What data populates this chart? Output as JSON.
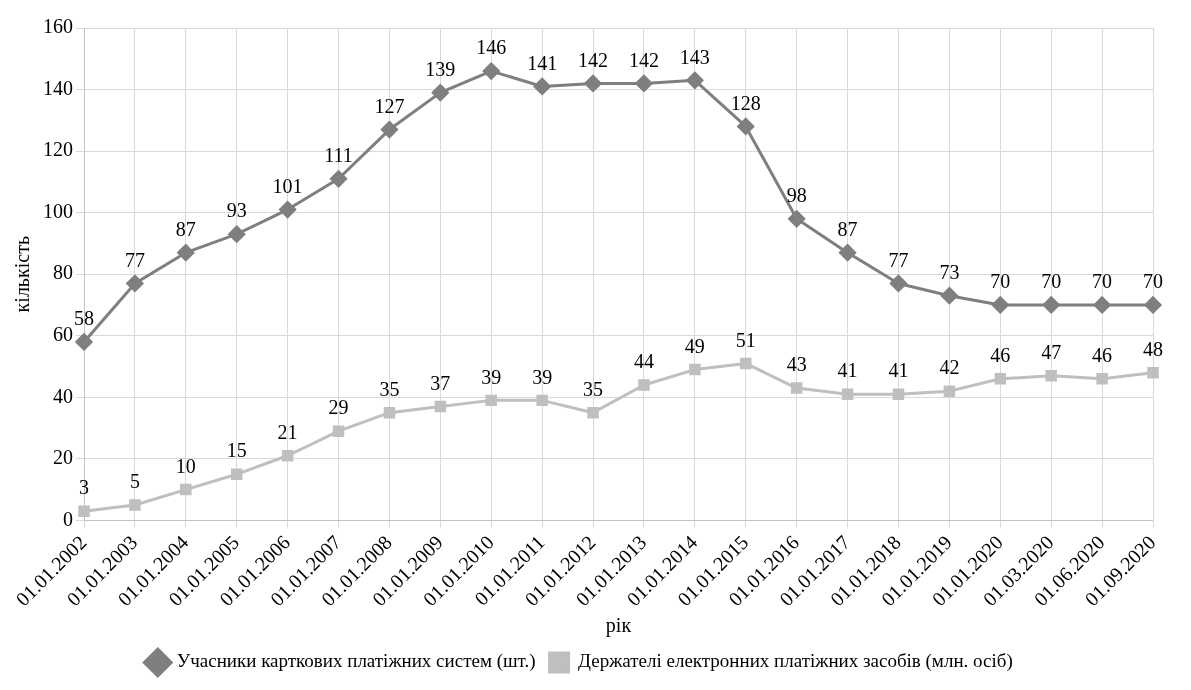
{
  "chart_data": {
    "type": "line",
    "xlabel": "рік",
    "ylabel": "кількість",
    "categories": [
      "01.01.2002",
      "01.01.2003",
      "01.01.2004",
      "01.01.2005",
      "01.01.2006",
      "01.01.2007",
      "01.01.2008",
      "01.01.2009",
      "01.01.2010",
      "01.01.2011",
      "01.01.2012",
      "01.01.2013",
      "01.01.2014",
      "01.01.2015",
      "01.01.2016",
      "01.01.2017",
      "01.01.2018",
      "01.01.2019",
      "01.01.2020",
      "01.03.2020",
      "01.06.2020",
      "01.09.2020"
    ],
    "series": [
      {
        "name": "Учасники карткових платіжних систем (шт.)",
        "color": "#7f7f7f",
        "marker": "diamond",
        "values": [
          58,
          77,
          87,
          93,
          101,
          111,
          127,
          139,
          146,
          141,
          142,
          142,
          143,
          128,
          98,
          87,
          77,
          73,
          70,
          70,
          70,
          70
        ]
      },
      {
        "name": "Держателі електронних платіжних засобів (млн. осіб)",
        "color": "#bfbfbf",
        "marker": "square",
        "values": [
          3,
          5,
          10,
          15,
          21,
          29,
          35,
          37,
          39,
          39,
          35,
          44,
          49,
          51,
          43,
          41,
          41,
          42,
          46,
          47,
          46,
          48
        ]
      }
    ],
    "ylim": [
      0,
      160
    ],
    "yticks": [
      0,
      20,
      40,
      60,
      80,
      100,
      120,
      140,
      160
    ],
    "grid": true,
    "legend": "bottom",
    "data_labels": true,
    "line_style": "solid"
  }
}
